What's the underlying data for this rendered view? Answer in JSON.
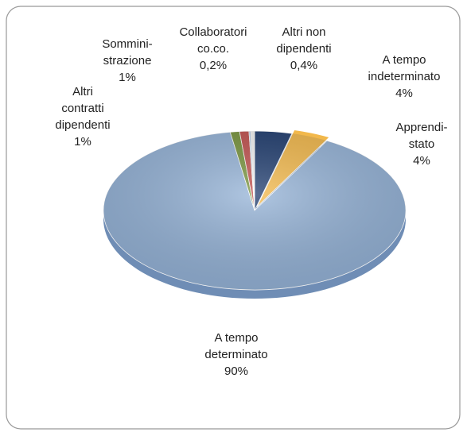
{
  "chart_data": {
    "type": "pie",
    "categories": [
      "A tempo\nindeterminato",
      "Apprendi-\nstato",
      "A tempo\ndeterminato",
      "Altri\ncontratti\ndipendenti",
      "Sommini-\nstrazione",
      "Collaboratori\nco.co.",
      "Altri non\ndipendenti"
    ],
    "values": [
      4,
      4,
      90,
      1,
      1,
      0.2,
      0.4
    ],
    "value_labels": [
      "4%",
      "4%",
      "90%",
      "1%",
      "1%",
      "0,2%",
      "0,4%"
    ],
    "colors": [
      "#1f3c6e",
      "#f2b84b",
      "#95b3d7",
      "#77933c",
      "#c0504d",
      "#b9cde5",
      "#f2f2f2"
    ]
  }
}
